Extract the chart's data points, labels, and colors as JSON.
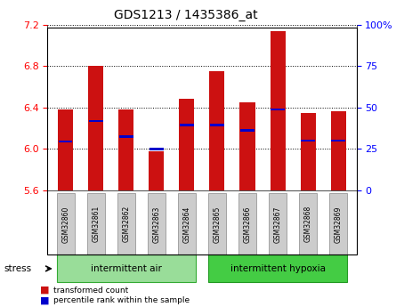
{
  "title": "GDS1213 / 1435386_at",
  "samples": [
    "GSM32860",
    "GSM32861",
    "GSM32862",
    "GSM32863",
    "GSM32864",
    "GSM32865",
    "GSM32866",
    "GSM32867",
    "GSM32868",
    "GSM32869"
  ],
  "bar_values": [
    6.38,
    6.8,
    6.38,
    5.98,
    6.48,
    6.75,
    6.45,
    7.14,
    6.35,
    6.36
  ],
  "bar_bottom": 5.6,
  "percentile_values": [
    6.07,
    6.27,
    6.12,
    6.0,
    6.23,
    6.23,
    6.18,
    6.38,
    6.08,
    6.08
  ],
  "ylim_left": [
    5.6,
    7.2
  ],
  "yticks_left": [
    5.6,
    6.0,
    6.4,
    6.8,
    7.2
  ],
  "yticks_right": [
    0,
    25,
    50,
    75,
    100
  ],
  "ytick_labels_right": [
    "0",
    "25",
    "50",
    "75",
    "100%"
  ],
  "bar_color": "#cc1111",
  "percentile_color": "#0000cc",
  "group1_label": "intermittent air",
  "group2_label": "intermittent hypoxia",
  "group1_indices": [
    0,
    1,
    2,
    3,
    4
  ],
  "group2_indices": [
    5,
    6,
    7,
    8,
    9
  ],
  "group1_color": "#99dd99",
  "group2_color": "#44cc44",
  "stress_label": "stress",
  "legend_bar_label": "transformed count",
  "legend_pct_label": "percentile rank within the sample",
  "bar_width": 0.5,
  "tick_label_color": "#cccccc"
}
